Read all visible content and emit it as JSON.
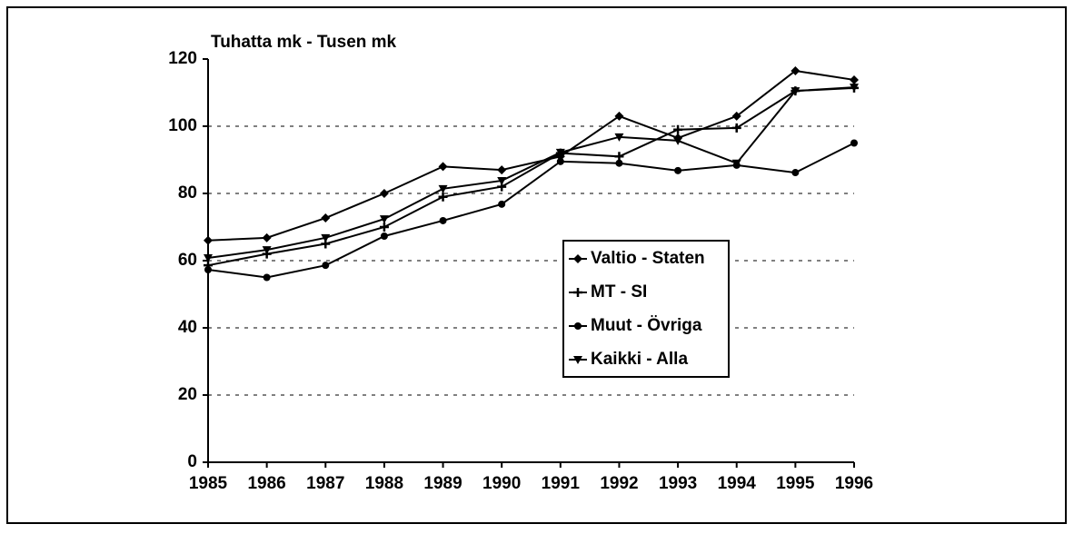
{
  "chart_data": {
    "type": "line",
    "title": "Tuhatta mk - Tusen mk",
    "categories": [
      "1985",
      "1986",
      "1987",
      "1988",
      "1989",
      "1990",
      "1991",
      "1992",
      "1993",
      "1994",
      "1995",
      "1996"
    ],
    "series": [
      {
        "name": "Valtio - Staten",
        "color": "#000000",
        "marker": "diamond",
        "values": [
          66,
          66.8,
          72.7,
          80,
          88,
          87,
          91,
          103,
          96.5,
          103,
          116.5,
          113.8
        ]
      },
      {
        "name": "MT - SI",
        "color": "#000000",
        "marker": "plus",
        "values": [
          58.6,
          62,
          65,
          70,
          79,
          82,
          92,
          91,
          99,
          99.5,
          110.5,
          111.4
        ]
      },
      {
        "name": "Muut - Övriga",
        "color": "#000000",
        "marker": "circle",
        "values": [
          57.3,
          55,
          58.6,
          67.3,
          71.9,
          76.8,
          89.5,
          89,
          86.8,
          88.4,
          86.2,
          95
        ]
      },
      {
        "name": "Kaikki - Alla",
        "color": "#000000",
        "marker": "triangle-down",
        "values": [
          60.8,
          63.2,
          66.8,
          72.4,
          81.4,
          83.8,
          92.2,
          96.8,
          95.7,
          89,
          110.5,
          111.6
        ]
      }
    ],
    "ylim": [
      0,
      120
    ],
    "yticks": [
      0,
      20,
      40,
      60,
      80,
      100,
      120
    ],
    "grid": true,
    "grid_style": "dashed"
  }
}
